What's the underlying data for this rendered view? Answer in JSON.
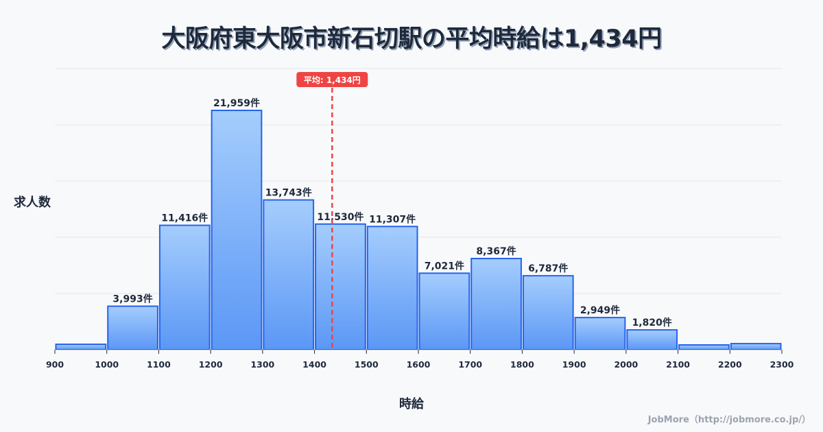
{
  "title": "大阪府東大阪市新石切駅の平均時給は1,434円",
  "footer": "JobMore（http://jobmore.co.jp/）",
  "colors": {
    "background": "#f8f9fb",
    "bar_fill_top": "#a5cdfd",
    "bar_fill_bottom": "#5b97f5",
    "bar_stroke": "#2563eb",
    "average_line": "#ef4444",
    "grid": "#e5e7eb",
    "text": "#1e293b"
  },
  "chart_data": {
    "type": "bar",
    "title": "大阪府東大阪市新石切駅の平均時給は1,434円",
    "xlabel": "時給",
    "ylabel": "求人数",
    "bin_edges": [
      900,
      1000,
      1100,
      1200,
      1300,
      1400,
      1500,
      1600,
      1700,
      1800,
      1900,
      2000,
      2100,
      2200,
      2300
    ],
    "categories": [
      "900-1000",
      "1000-1100",
      "1100-1200",
      "1200-1300",
      "1300-1400",
      "1400-1500",
      "1500-1600",
      "1600-1700",
      "1700-1800",
      "1800-1900",
      "1900-2000",
      "2000-2100",
      "2100-2200",
      "2200-2300"
    ],
    "values": [
      500,
      3993,
      11416,
      21959,
      13743,
      11530,
      11307,
      7021,
      8367,
      6787,
      2949,
      1820,
      440,
      560
    ],
    "labels": [
      "",
      "3,993件",
      "11,416件",
      "21,959件",
      "13,743件",
      "11,530件",
      "11,307件",
      "7,021件",
      "8,367件",
      "6,787件",
      "2,949件",
      "1,820件",
      "",
      ""
    ],
    "x_ticks": [
      "900",
      "1000",
      "1100",
      "1200",
      "1300",
      "1400",
      "1500",
      "1600",
      "1700",
      "1800",
      "1900",
      "2000",
      "2100",
      "2200",
      "2300"
    ],
    "xlim": [
      900,
      2300
    ],
    "ylim": [
      0,
      25800
    ],
    "grid": true,
    "annotations": [
      {
        "type": "vline",
        "x": 1434,
        "label": "平均: 1,434円",
        "style": "dashed",
        "color": "#ef4444"
      }
    ]
  }
}
